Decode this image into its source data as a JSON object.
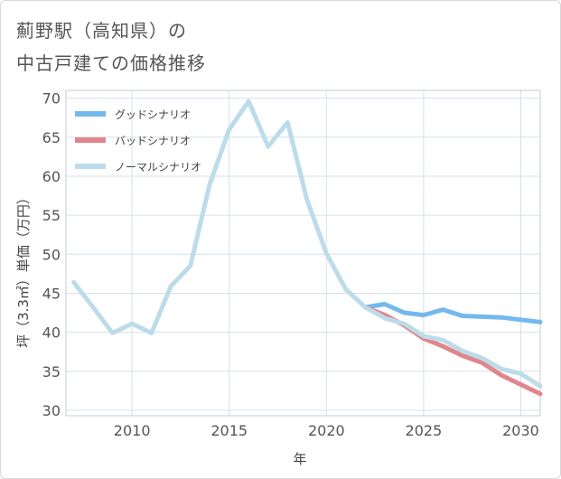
{
  "title_lines": [
    "薊野駅（高知県）の",
    "中古戸建ての価格推移"
  ],
  "chart_data": {
    "type": "line",
    "title": "薊野駅（高知県）の中古戸建ての価格推移",
    "xlabel": "年",
    "ylabel": "坪（3.3㎡）単価（万円）",
    "xlim": [
      2006.6,
      2031
    ],
    "ylim": [
      29.3,
      71
    ],
    "xticks": [
      2010,
      2015,
      2020,
      2025,
      2030
    ],
    "yticks": [
      30,
      35,
      40,
      45,
      50,
      55,
      60,
      65,
      70
    ],
    "grid": true,
    "legend_position": "top-left",
    "series": [
      {
        "name": "グッドシナリオ",
        "color": "#74b9ee",
        "x": [
          2022,
          2023,
          2024,
          2025,
          2026,
          2027,
          2028,
          2029,
          2030,
          2031
        ],
        "y": [
          43.2,
          43.6,
          42.5,
          42.2,
          42.9,
          42.1,
          42.0,
          41.9,
          41.6,
          41.3
        ]
      },
      {
        "name": "バッドシナリオ",
        "color": "#e0868c",
        "x": [
          2022,
          2023,
          2024,
          2025,
          2026,
          2027,
          2028,
          2029,
          2030,
          2031
        ],
        "y": [
          43.2,
          42.2,
          40.9,
          39.2,
          38.2,
          37.0,
          36.1,
          34.5,
          33.3,
          32.1
        ]
      },
      {
        "name": "ノーマルシナリオ",
        "color": "#bddcea",
        "x": [
          2007,
          2008,
          2009,
          2010,
          2011,
          2012,
          2013,
          2014,
          2015,
          2016,
          2017,
          2018,
          2019,
          2020,
          2021,
          2022,
          2023,
          2024,
          2025,
          2026,
          2027,
          2028,
          2029,
          2030,
          2031
        ],
        "y": [
          46.4,
          43.2,
          39.9,
          41.1,
          39.9,
          45.9,
          48.5,
          59.0,
          66.0,
          69.6,
          63.8,
          66.9,
          57.0,
          50.1,
          45.5,
          43.2,
          41.8,
          41.1,
          39.5,
          39.0,
          37.6,
          36.7,
          35.3,
          34.7,
          33.1
        ]
      }
    ]
  }
}
